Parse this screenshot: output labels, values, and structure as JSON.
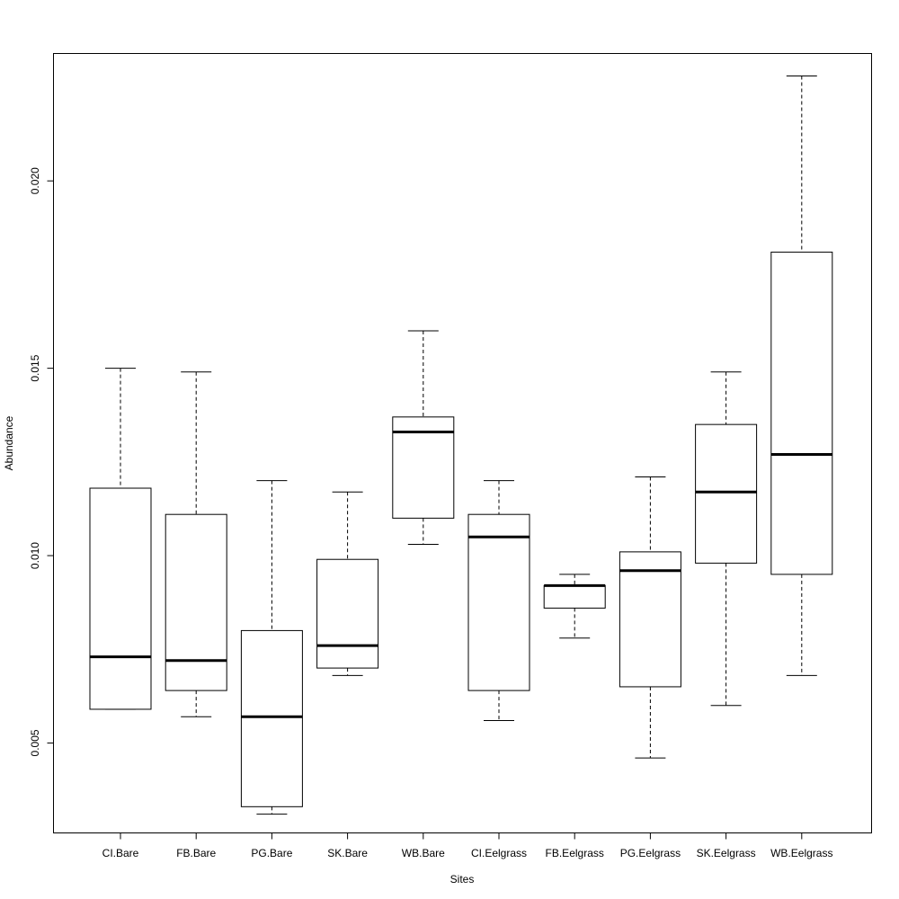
{
  "chart_data": {
    "type": "box",
    "title": "",
    "xlabel": "Sites",
    "ylabel": "Abundance",
    "ylim": [
      0.0026,
      0.0234
    ],
    "yticks": [
      0.005,
      0.01,
      0.015,
      0.02
    ],
    "ytick_labels": [
      "0.005",
      "0.010",
      "0.015",
      "0.020"
    ],
    "categories": [
      "CI.Bare",
      "FB.Bare",
      "PG.Bare",
      "SK.Bare",
      "WB.Bare",
      "CI.Eelgrass",
      "FB.Eelgrass",
      "PG.Eelgrass",
      "SK.Eelgrass",
      "WB.Eelgrass"
    ],
    "boxes": [
      {
        "min": 0.0059,
        "q1": 0.0059,
        "median": 0.0073,
        "q3": 0.0118,
        "max": 0.015
      },
      {
        "min": 0.0057,
        "q1": 0.0064,
        "median": 0.0072,
        "q3": 0.0111,
        "max": 0.0149
      },
      {
        "min": 0.0031,
        "q1": 0.0033,
        "median": 0.0057,
        "q3": 0.008,
        "max": 0.012
      },
      {
        "min": 0.0068,
        "q1": 0.007,
        "median": 0.0076,
        "q3": 0.0099,
        "max": 0.0117
      },
      {
        "min": 0.0103,
        "q1": 0.011,
        "median": 0.0133,
        "q3": 0.0137,
        "max": 0.016
      },
      {
        "min": 0.0056,
        "q1": 0.0064,
        "median": 0.0105,
        "q3": 0.0111,
        "max": 0.012
      },
      {
        "min": 0.0078,
        "q1": 0.0086,
        "median": 0.0092,
        "q3": 0.0092,
        "max": 0.0095
      },
      {
        "min": 0.0046,
        "q1": 0.0065,
        "median": 0.0096,
        "q3": 0.0101,
        "max": 0.0121
      },
      {
        "min": 0.006,
        "q1": 0.0098,
        "median": 0.0117,
        "q3": 0.0135,
        "max": 0.0149
      },
      {
        "min": 0.0068,
        "q1": 0.0095,
        "median": 0.0127,
        "q3": 0.0181,
        "max": 0.0228
      }
    ],
    "grid": false,
    "legend": "none"
  }
}
